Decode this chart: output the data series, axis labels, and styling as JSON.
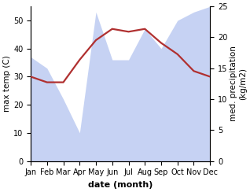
{
  "months": [
    "Jan",
    "Feb",
    "Mar",
    "Apr",
    "May",
    "Jun",
    "Jul",
    "Aug",
    "Sep",
    "Oct",
    "Nov",
    "Dec"
  ],
  "month_x": [
    1,
    2,
    3,
    4,
    5,
    6,
    7,
    8,
    9,
    10,
    11,
    12
  ],
  "max_temp": [
    30,
    28,
    28,
    36,
    43,
    47,
    46,
    47,
    42,
    38,
    32,
    30
  ],
  "precipitation": [
    37,
    33,
    22,
    10,
    53,
    36,
    36,
    47,
    40,
    50,
    53,
    55
  ],
  "temp_ylim": [
    0,
    55
  ],
  "precip_ylim": [
    0,
    25
  ],
  "temp_yticks": [
    0,
    10,
    20,
    30,
    40,
    50
  ],
  "precip_yticks": [
    0,
    5,
    10,
    15,
    20,
    25
  ],
  "precip_scale_factor": 2.2,
  "area_color": "#aec0ee",
  "line_color": "#b03030",
  "line_width": 1.6,
  "xlabel": "date (month)",
  "ylabel_left": "max temp (C)",
  "ylabel_right": "med. precipitation\n(kg/m2)",
  "bg_color": "#ffffff",
  "xlabel_fontsize": 8,
  "ylabel_fontsize": 7.5,
  "tick_fontsize": 7
}
